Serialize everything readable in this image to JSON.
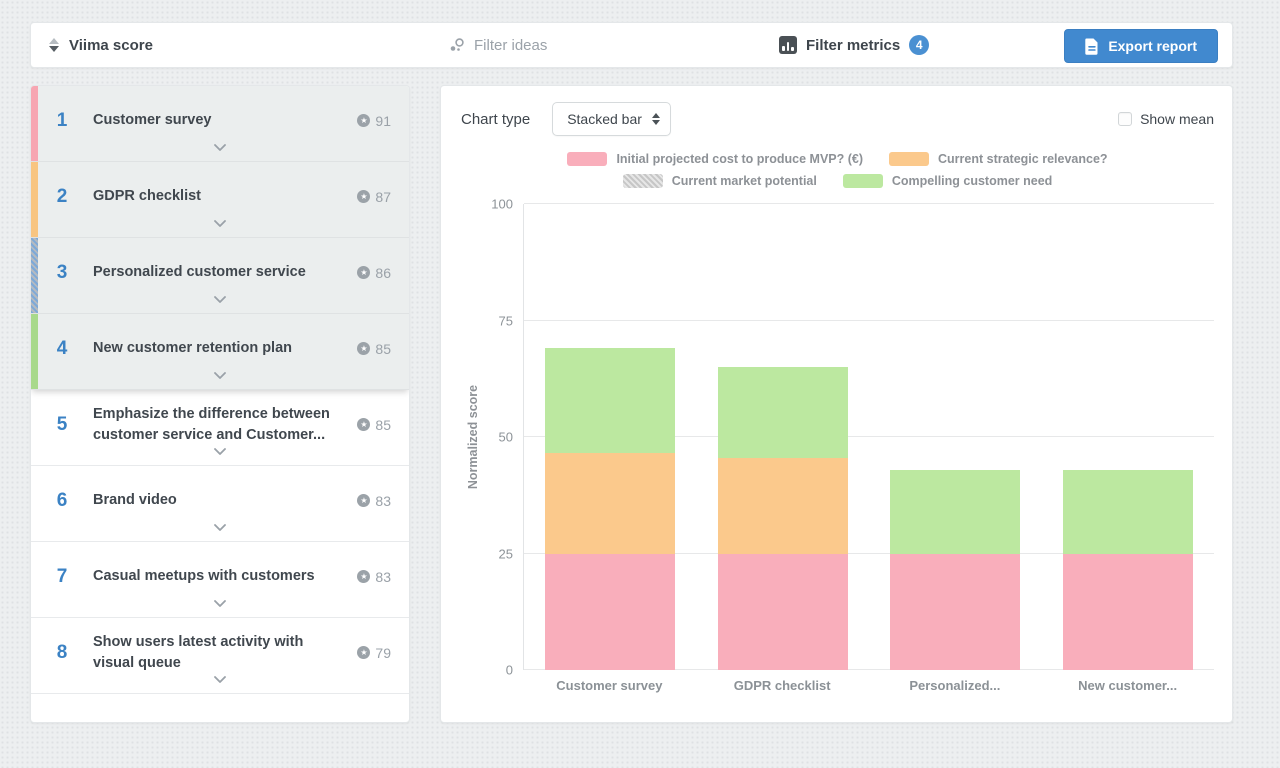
{
  "toolbar": {
    "sort_label": "Viima score",
    "filter_ideas_placeholder": "Filter ideas",
    "filter_metrics_label": "Filter metrics",
    "filter_metrics_count": "4",
    "export_label": "Export report"
  },
  "colors": {
    "accent_blue": "#4189cf",
    "badge_blue": "#4a90d2",
    "rank_blue": "#3b82c4",
    "series_pink": "#f9aebb",
    "series_orange": "#fbc98c",
    "series_gray": "#d0d0d0",
    "series_green": "#bce8a0"
  },
  "ideas": [
    {
      "rank": "1",
      "title": "Customer survey",
      "score": "91",
      "stripe_color": "#f7a6b2",
      "selected": true
    },
    {
      "rank": "2",
      "title": "GDPR checklist",
      "score": "87",
      "stripe_color": "#f8c581",
      "selected": true
    },
    {
      "rank": "3",
      "title": "Personalized customer service",
      "score": "86",
      "stripe_pattern": "blue-gray",
      "selected": true
    },
    {
      "rank": "4",
      "title": "New customer retention plan",
      "score": "85",
      "stripe_color": "#a8d98b",
      "selected": true
    },
    {
      "rank": "5",
      "title": "Emphasize the difference between customer service and Customer...",
      "score": "85",
      "selected": false
    },
    {
      "rank": "6",
      "title": "Brand video",
      "score": "83",
      "selected": false
    },
    {
      "rank": "7",
      "title": "Casual meetups with customers",
      "score": "83",
      "selected": false
    },
    {
      "rank": "8",
      "title": "Show users latest activity with visual queue",
      "score": "79",
      "selected": false
    }
  ],
  "chart_controls": {
    "chart_type_label": "Chart type",
    "chart_type_value": "Stacked bar",
    "show_mean_label": "Show mean"
  },
  "chart_data": {
    "type": "bar",
    "stacked": true,
    "title": "",
    "xlabel": "",
    "ylabel": "Normalized score",
    "ylim": [
      0,
      100
    ],
    "yticks": [
      0,
      25,
      50,
      75,
      100
    ],
    "grid": true,
    "legend_position": "top",
    "categories": [
      "Customer survey",
      "GDPR checklist",
      "Personalized...",
      "New customer..."
    ],
    "series": [
      {
        "name": "Initial projected cost to produce MVP? (€)",
        "color": "#f9aebb",
        "values": [
          25,
          25,
          25,
          25
        ]
      },
      {
        "name": "Current strategic relevance?",
        "color": "#fbc98c",
        "values": [
          21.5,
          20.5,
          0,
          0
        ]
      },
      {
        "name": "Current market potential",
        "color": "#d0d0d0",
        "pattern": "striped",
        "values": [
          0,
          0,
          0,
          0
        ]
      },
      {
        "name": "Compelling customer need",
        "color": "#bce8a0",
        "values": [
          22.5,
          19.5,
          18,
          18
        ]
      }
    ]
  }
}
